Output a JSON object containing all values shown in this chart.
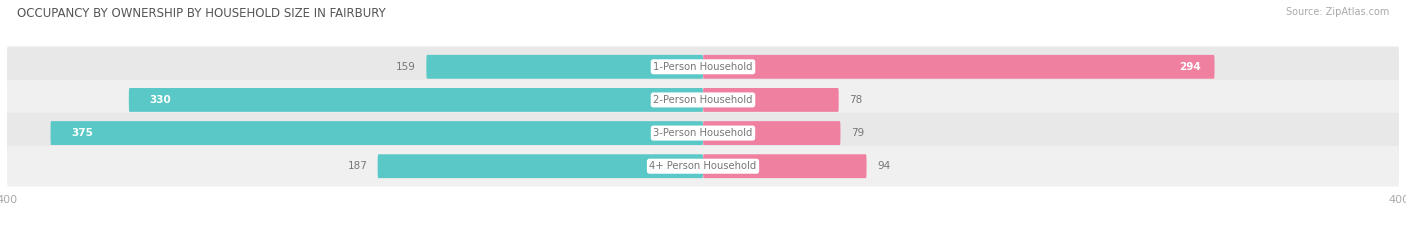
{
  "title": "OCCUPANCY BY OWNERSHIP BY HOUSEHOLD SIZE IN FAIRBURY",
  "source": "Source: ZipAtlas.com",
  "categories": [
    "1-Person Household",
    "2-Person Household",
    "3-Person Household",
    "4+ Person Household"
  ],
  "owner_values": [
    159,
    330,
    375,
    187
  ],
  "renter_values": [
    294,
    78,
    79,
    94
  ],
  "owner_color": "#5bc8c8",
  "renter_color": "#f080a0",
  "row_bg_colors": [
    "#f0f0f0",
    "#e8e8e8",
    "#f0f0f0",
    "#e8e8e8"
  ],
  "axis_max": 400,
  "title_color": "#555555",
  "source_color": "#aaaaaa",
  "center_label_color": "#777777",
  "value_outside_color": "#777777",
  "white_value_color": "#ffffff",
  "axis_label_color": "#aaaaaa",
  "owner_inside_threshold": 200,
  "renter_inside_threshold": 200
}
